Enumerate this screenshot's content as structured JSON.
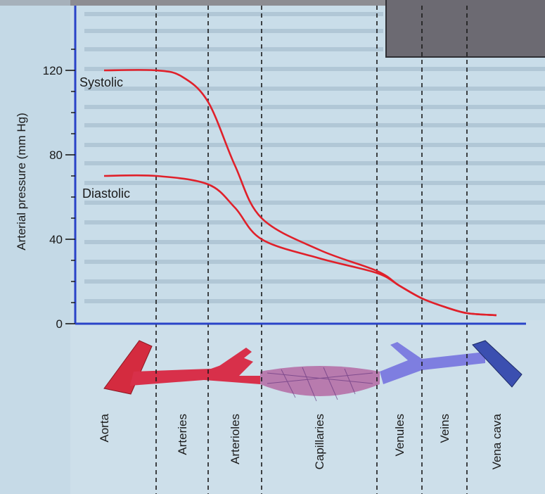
{
  "chart_data": {
    "type": "line",
    "ylabel": "Arterial pressure (mm Hg)",
    "ylim": [
      0,
      140
    ],
    "yticks": [
      0,
      40,
      80,
      120
    ],
    "grid": false,
    "categories": [
      "Aorta",
      "Arteries",
      "Arterioles",
      "Capillaries",
      "Venules",
      "Veins",
      "Vena cava"
    ],
    "series": [
      {
        "name": "Systolic",
        "color": "#e0202a",
        "points": [
          [
            0,
            120
          ],
          [
            1.0,
            120
          ],
          [
            1.5,
            117
          ],
          [
            2.0,
            105
          ],
          [
            2.5,
            75
          ],
          [
            3.0,
            50
          ],
          [
            3.5,
            35
          ],
          [
            4.0,
            25
          ],
          [
            4.5,
            18
          ],
          [
            5.0,
            12
          ],
          [
            5.5,
            8
          ],
          [
            6.0,
            5
          ],
          [
            6.5,
            4
          ]
        ]
      },
      {
        "name": "Diastolic",
        "color": "#e0202a",
        "points": [
          [
            0,
            70
          ],
          [
            1.0,
            70
          ],
          [
            2.0,
            66
          ],
          [
            2.5,
            55
          ],
          [
            3.0,
            40
          ],
          [
            3.5,
            31
          ],
          [
            4.0,
            24
          ],
          [
            4.5,
            18
          ],
          [
            5.0,
            12
          ],
          [
            5.5,
            8
          ],
          [
            6.0,
            5
          ],
          [
            6.5,
            4
          ]
        ]
      }
    ]
  }
}
